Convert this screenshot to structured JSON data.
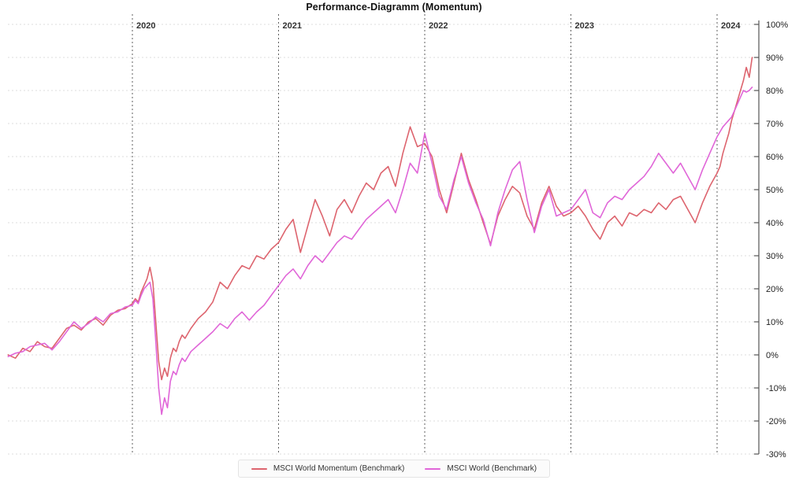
{
  "title": "Performance-Diagramm (Momentum)",
  "chart_data": {
    "type": "line",
    "title": "Performance-Diagramm (Momentum)",
    "xlabel": "",
    "ylabel": "",
    "ylim": [
      -30,
      100
    ],
    "grid": true,
    "legend_position": "bottom",
    "y_ticks": {
      "values": [
        100,
        90,
        80,
        70,
        60,
        50,
        40,
        30,
        20,
        10,
        0,
        -10,
        -20,
        -30
      ],
      "labels": [
        "100%",
        "90%",
        "80%",
        "70%",
        "60%",
        "50%",
        "40%",
        "30%",
        "20%",
        "10%",
        "0%",
        "-10%",
        "-20%",
        "-30%"
      ]
    },
    "year_markers": [
      {
        "year": 2020,
        "label": "2020"
      },
      {
        "year": 2021,
        "label": "2021"
      },
      {
        "year": 2022,
        "label": "2022"
      },
      {
        "year": 2023,
        "label": "2023"
      },
      {
        "year": 2024,
        "label": "2024"
      }
    ],
    "x": [
      2019.15,
      2019.2,
      2019.25,
      2019.3,
      2019.35,
      2019.4,
      2019.45,
      2019.5,
      2019.55,
      2019.6,
      2019.65,
      2019.7,
      2019.75,
      2019.8,
      2019.85,
      2019.9,
      2019.95,
      2020.0,
      2020.02,
      2020.04,
      2020.06,
      2020.08,
      2020.1,
      2020.12,
      2020.14,
      2020.16,
      2020.18,
      2020.2,
      2020.22,
      2020.24,
      2020.26,
      2020.28,
      2020.3,
      2020.32,
      2020.34,
      2020.36,
      2020.4,
      2020.45,
      2020.5,
      2020.55,
      2020.6,
      2020.65,
      2020.7,
      2020.75,
      2020.8,
      2020.85,
      2020.9,
      2020.95,
      2021.0,
      2021.05,
      2021.1,
      2021.15,
      2021.2,
      2021.25,
      2021.3,
      2021.35,
      2021.4,
      2021.45,
      2021.5,
      2021.55,
      2021.6,
      2021.65,
      2021.7,
      2021.75,
      2021.8,
      2021.85,
      2021.9,
      2021.95,
      2022.0,
      2022.05,
      2022.1,
      2022.15,
      2022.2,
      2022.25,
      2022.3,
      2022.35,
      2022.4,
      2022.45,
      2022.5,
      2022.55,
      2022.6,
      2022.65,
      2022.7,
      2022.75,
      2022.8,
      2022.85,
      2022.9,
      2022.95,
      2023.0,
      2023.05,
      2023.1,
      2023.15,
      2023.2,
      2023.25,
      2023.3,
      2023.35,
      2023.4,
      2023.45,
      2023.5,
      2023.55,
      2023.6,
      2023.65,
      2023.7,
      2023.75,
      2023.8,
      2023.85,
      2023.9,
      2023.95,
      2024.0,
      2024.02,
      2024.04,
      2024.06,
      2024.08,
      2024.1,
      2024.12,
      2024.14,
      2024.16,
      2024.18,
      2024.2,
      2024.22,
      2024.24
    ],
    "series": [
      {
        "name": "MSCI World Momentum (Benchmark)",
        "color": "#dd646e",
        "values": [
          0,
          -1,
          2,
          1,
          4,
          2.5,
          2,
          5,
          8,
          9,
          7.5,
          10,
          11,
          9,
          12,
          13.5,
          14,
          15.5,
          17,
          16,
          19,
          21,
          23,
          26.5,
          22,
          10,
          -2,
          -7.5,
          -4,
          -6.5,
          -1,
          2,
          1,
          4,
          6,
          5,
          8,
          11,
          13,
          16,
          22,
          20,
          24,
          27,
          26,
          30,
          29,
          32,
          34,
          38,
          41,
          31,
          39,
          47,
          42,
          36,
          44,
          47,
          43,
          48,
          52,
          50,
          55,
          57,
          51,
          61,
          69,
          63,
          64,
          60,
          50,
          43,
          52,
          61,
          53,
          47,
          40,
          33.5,
          42,
          47,
          51,
          49,
          42,
          38,
          46,
          51,
          45,
          42,
          43,
          45,
          42,
          38,
          35,
          40,
          42,
          39,
          43,
          42,
          44,
          43,
          46,
          44,
          47,
          48,
          44,
          40,
          46,
          51,
          55,
          57,
          61,
          64,
          67,
          71,
          74,
          77,
          80,
          83,
          87,
          84,
          90
        ]
      },
      {
        "name": "MSCI World (Benchmark)",
        "color": "#e066d8",
        "values": [
          -0.5,
          0.5,
          1,
          2.5,
          3,
          3.5,
          1.5,
          4,
          7,
          10,
          8,
          9.5,
          11.5,
          10,
          12.5,
          13,
          14.5,
          15,
          16.5,
          15.5,
          18,
          20,
          21,
          22,
          17,
          4,
          -10,
          -18,
          -13,
          -16,
          -8,
          -5,
          -6,
          -3,
          -1,
          -2,
          1,
          3,
          5,
          7,
          9.5,
          8,
          11,
          13,
          10.5,
          13,
          15,
          18,
          21,
          24,
          26,
          23,
          27,
          30,
          28,
          31,
          34,
          36,
          35,
          38,
          41,
          43,
          45,
          47,
          43,
          50,
          58,
          55,
          67,
          58,
          48,
          44,
          53,
          60,
          52,
          46,
          41,
          33,
          43,
          50,
          56,
          58.5,
          47,
          37,
          45,
          50,
          42,
          43,
          44,
          47,
          50,
          43,
          41.5,
          46,
          48,
          47,
          50,
          52,
          54,
          57,
          61,
          58,
          55,
          58,
          54,
          50,
          56,
          61,
          66,
          67.5,
          69,
          70,
          71,
          72,
          74,
          76,
          78,
          80,
          79.5,
          80,
          81
        ]
      }
    ]
  },
  "legend": {
    "items": [
      {
        "label": "MSCI World Momentum (Benchmark)",
        "color": "#dd646e"
      },
      {
        "label": "MSCI World (Benchmark)",
        "color": "#e066d8"
      }
    ]
  }
}
